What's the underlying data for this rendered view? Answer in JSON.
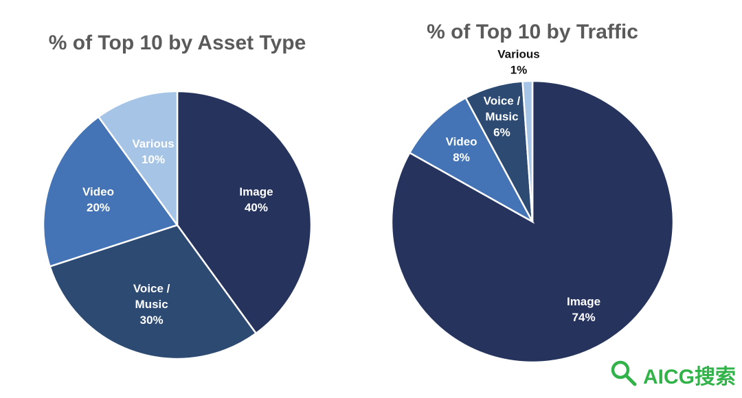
{
  "chart_data": [
    {
      "type": "pie",
      "title": "% of Top 10 by Asset Type",
      "slices": [
        {
          "label": "Image",
          "value": 40,
          "text_lines": [
            "Image",
            "40%"
          ],
          "color": "#26345d",
          "label_color": "#ffffff"
        },
        {
          "label": "Voice / Music",
          "value": 30,
          "text_lines": [
            "Voice /",
            "Music",
            "30%"
          ],
          "color": "#2d4a72",
          "label_color": "#ffffff"
        },
        {
          "label": "Video",
          "value": 20,
          "text_lines": [
            "Video",
            "20%"
          ],
          "color": "#4474b5",
          "label_color": "#ffffff"
        },
        {
          "label": "Various",
          "value": 10,
          "text_lines": [
            "Various",
            "10%"
          ],
          "color": "#a6c4e6",
          "label_color": "#ffffff"
        }
      ]
    },
    {
      "type": "pie",
      "title": "% of Top 10 by Traffic",
      "slices": [
        {
          "label": "Image",
          "value": 74,
          "text_lines": [
            "Image",
            "74%"
          ],
          "color": "#26345d",
          "label_color": "#ffffff"
        },
        {
          "label": "Video",
          "value": 8,
          "text_lines": [
            "Video",
            "8%"
          ],
          "color": "#4474b5",
          "label_color": "#ffffff"
        },
        {
          "label": "Voice / Music",
          "value": 6,
          "text_lines": [
            "Voice /",
            "Music",
            "6%"
          ],
          "color": "#2d4a72",
          "label_color": "#ffffff"
        },
        {
          "label": "Various",
          "value": 1,
          "text_lines": [
            "Various",
            "1%"
          ],
          "color": "#a6c4e6",
          "label_color": "#111111",
          "label_outside": true
        }
      ]
    }
  ],
  "watermark": {
    "text": "AICG搜索",
    "icon": "magnifier-icon",
    "color": "#32b34a"
  }
}
